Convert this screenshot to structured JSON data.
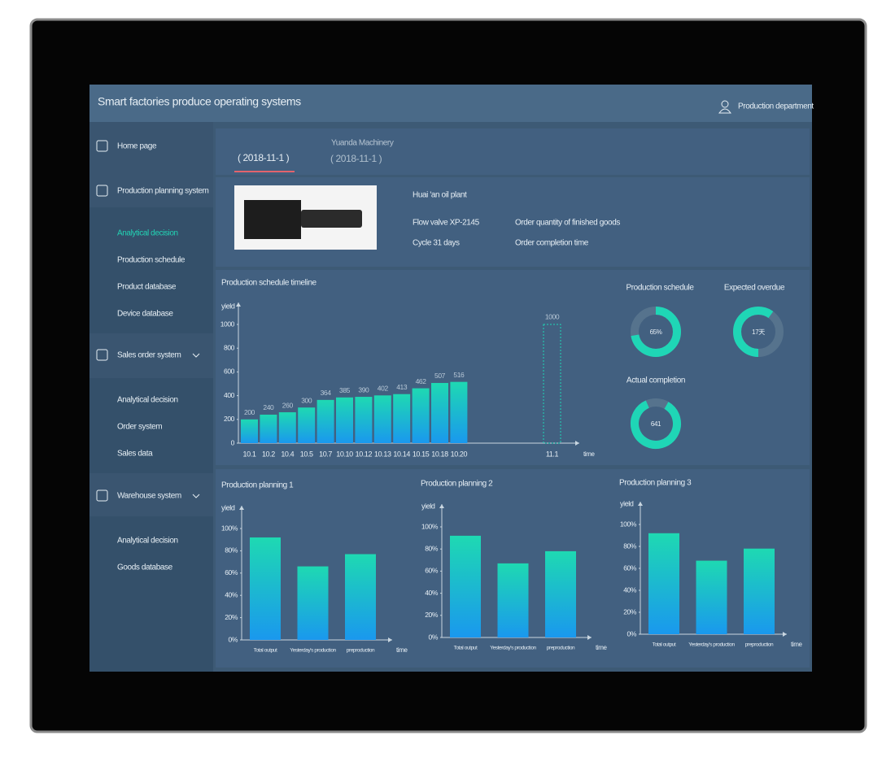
{
  "header": {
    "title": "Smart factories produce operating systems",
    "user": "Production department"
  },
  "sidebar": [
    {
      "label": "Home page"
    },
    {
      "label": "Production planning system",
      "items": [
        "Analytical decision",
        "Production schedule",
        "Product database",
        "Device database"
      ]
    },
    {
      "label": "Sales order system",
      "items": [
        "Analytical decision",
        "Order system",
        "Sales data"
      ]
    },
    {
      "label": "Warehouse system",
      "items": [
        "Analytical decision",
        "Goods database"
      ]
    }
  ],
  "tabs": [
    {
      "label": "( 2018-11-1 )"
    },
    {
      "title": "Yuanda Machinery",
      "label": "( 2018-11-1 )"
    }
  ],
  "product": {
    "plant": "Huai 'an oil plant",
    "model": "Flow valve XP-2145",
    "cycle": "Cycle 31 days",
    "quantity": "Order quantity of finished goods",
    "completion": "Order completion time"
  },
  "gauges": [
    {
      "title": "Production schedule",
      "label": "65%"
    },
    {
      "title": "Expected overdue",
      "label": "17天"
    },
    {
      "title": "Actual completion",
      "label": "641"
    }
  ],
  "chart_data": [
    {
      "type": "bar",
      "title": "Production schedule timeline",
      "y_label": "yield",
      "x_label": "time",
      "categories": [
        "10.1",
        "10.2",
        "10.4",
        "10.5",
        "10.7",
        "10.10",
        "10.12",
        "10.13",
        "10.14",
        "10.15",
        "10.18",
        "10.20"
      ],
      "values": [
        200,
        240,
        260,
        300,
        364,
        385,
        390,
        402,
        413,
        462,
        507,
        516
      ],
      "target": {
        "category": "11.1",
        "value": 1000
      },
      "ylim": [
        0,
        1000
      ],
      "yticks": [
        0,
        200,
        400,
        600,
        800,
        1000
      ]
    },
    {
      "type": "bar",
      "title": "Production planning 1",
      "y_label": "yield",
      "x_label": "time",
      "categories": [
        "Total output",
        "Yesterday's production",
        "preproduction"
      ],
      "values": [
        92,
        66,
        77
      ],
      "ylim": [
        0,
        100
      ],
      "yticks": [
        {
          "value": 0,
          "label": "0%"
        },
        {
          "value": 20,
          "label": "20%"
        },
        {
          "value": 40,
          "label": "40%"
        },
        {
          "value": 60,
          "label": "60%"
        },
        {
          "value": 80,
          "label": "80%"
        },
        {
          "value": 100,
          "label": "100%"
        }
      ]
    },
    {
      "type": "bar",
      "title": "Production planning 2",
      "y_label": "yield",
      "x_label": "time",
      "categories": [
        "Total output",
        "Yesterday's production",
        "preproduction"
      ],
      "values": [
        92,
        67,
        78
      ],
      "ylim": [
        0,
        100
      ],
      "yticks": [
        {
          "value": 0,
          "label": "0%"
        },
        {
          "value": 20,
          "label": "20%"
        },
        {
          "value": 40,
          "label": "40%"
        },
        {
          "value": 60,
          "label": "60%"
        },
        {
          "value": 80,
          "label": "80%"
        },
        {
          "value": 100,
          "label": "100%"
        }
      ]
    },
    {
      "type": "bar",
      "title": "Production planning 3",
      "y_label": "yield",
      "x_label": "time",
      "categories": [
        "Total output",
        "Yesterday's production",
        "preproduction"
      ],
      "values": [
        92,
        67,
        78
      ],
      "ylim": [
        0,
        100
      ],
      "yticks": [
        {
          "value": 0,
          "label": "0%"
        },
        {
          "value": 20,
          "label": "20%"
        },
        {
          "value": 40,
          "label": "40%"
        },
        {
          "value": 60,
          "label": "60%"
        },
        {
          "value": 80,
          "label": "80%"
        },
        {
          "value": 100,
          "label": "100%"
        }
      ]
    }
  ]
}
